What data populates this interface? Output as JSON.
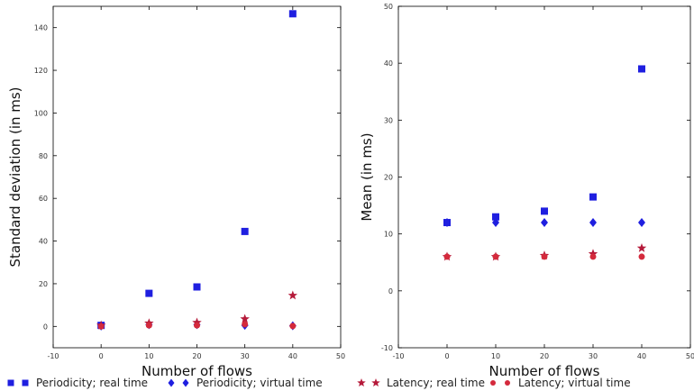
{
  "chart_data": [
    {
      "type": "scatter",
      "xlabel": "Number of flows",
      "ylabel": "Standard deviation (in ms)",
      "xlim": [
        -10,
        50
      ],
      "ylim": [
        -10,
        150
      ],
      "xticks": [
        "-10",
        "0",
        "10",
        "20",
        "30",
        "40",
        "50"
      ],
      "yticks": [
        "0",
        "20",
        "40",
        "60",
        "80",
        "100",
        "120",
        "140"
      ],
      "grid": false,
      "series": [
        {
          "name": "Periodicity; real time",
          "marker": "square",
          "color": "#1f1fe0",
          "x": [
            0,
            10,
            20,
            30,
            40
          ],
          "y": [
            0.5,
            15.5,
            18.5,
            44.5,
            146.5
          ]
        },
        {
          "name": "Periodicity; virtual time",
          "marker": "diamond",
          "color": "#1f1fe0",
          "x": [
            0,
            10,
            20,
            30,
            40
          ],
          "y": [
            0.2,
            0.8,
            0.8,
            0.5,
            0.3
          ]
        },
        {
          "name": "Latency; real time",
          "marker": "star",
          "color": "#b51a3a",
          "x": [
            0,
            10,
            20,
            30,
            40
          ],
          "y": [
            0.5,
            1.5,
            1.8,
            3.5,
            14.5
          ]
        },
        {
          "name": "Latency; virtual time",
          "marker": "circle",
          "color": "#d42a3c",
          "x": [
            0,
            10,
            20,
            30,
            40
          ],
          "y": [
            0,
            0.5,
            0.5,
            1.0,
            0.2
          ]
        }
      ]
    },
    {
      "type": "scatter",
      "xlabel": "Number of flows",
      "ylabel": "Mean (in ms)",
      "xlim": [
        -10,
        50
      ],
      "ylim": [
        -10,
        50
      ],
      "xticks": [
        "-10",
        "0",
        "10",
        "20",
        "30",
        "40",
        "50"
      ],
      "yticks": [
        "-10",
        "0",
        "10",
        "20",
        "30",
        "40",
        "50"
      ],
      "grid": false,
      "series": [
        {
          "name": "Periodicity; real time",
          "marker": "square",
          "color": "#1f1fe0",
          "x": [
            0,
            10,
            20,
            30,
            40
          ],
          "y": [
            12,
            13,
            14,
            16.5,
            39
          ]
        },
        {
          "name": "Periodicity; virtual time",
          "marker": "diamond",
          "color": "#1f1fe0",
          "x": [
            0,
            10,
            20,
            30,
            40
          ],
          "y": [
            12,
            12,
            12,
            12,
            12
          ]
        },
        {
          "name": "Latency; real time",
          "marker": "star",
          "color": "#b51a3a",
          "x": [
            0,
            10,
            20,
            30,
            40
          ],
          "y": [
            6,
            6,
            6.2,
            6.5,
            7.5
          ]
        },
        {
          "name": "Latency; virtual time",
          "marker": "circle",
          "color": "#d42a3c",
          "x": [
            0,
            10,
            20,
            30,
            40
          ],
          "y": [
            6,
            6,
            6,
            6,
            6
          ]
        }
      ]
    }
  ],
  "legend": {
    "placement": "bottom",
    "entries": [
      {
        "label": "Periodicity; real time",
        "marker": "square",
        "color": "#1f1fe0"
      },
      {
        "label": "Periodicity; virtual time",
        "marker": "diamond",
        "color": "#1f1fe0"
      },
      {
        "label": "Latency; real time",
        "marker": "star",
        "color": "#b51a3a"
      },
      {
        "label": "Latency; virtual time",
        "marker": "circle",
        "color": "#d42a3c"
      }
    ]
  }
}
